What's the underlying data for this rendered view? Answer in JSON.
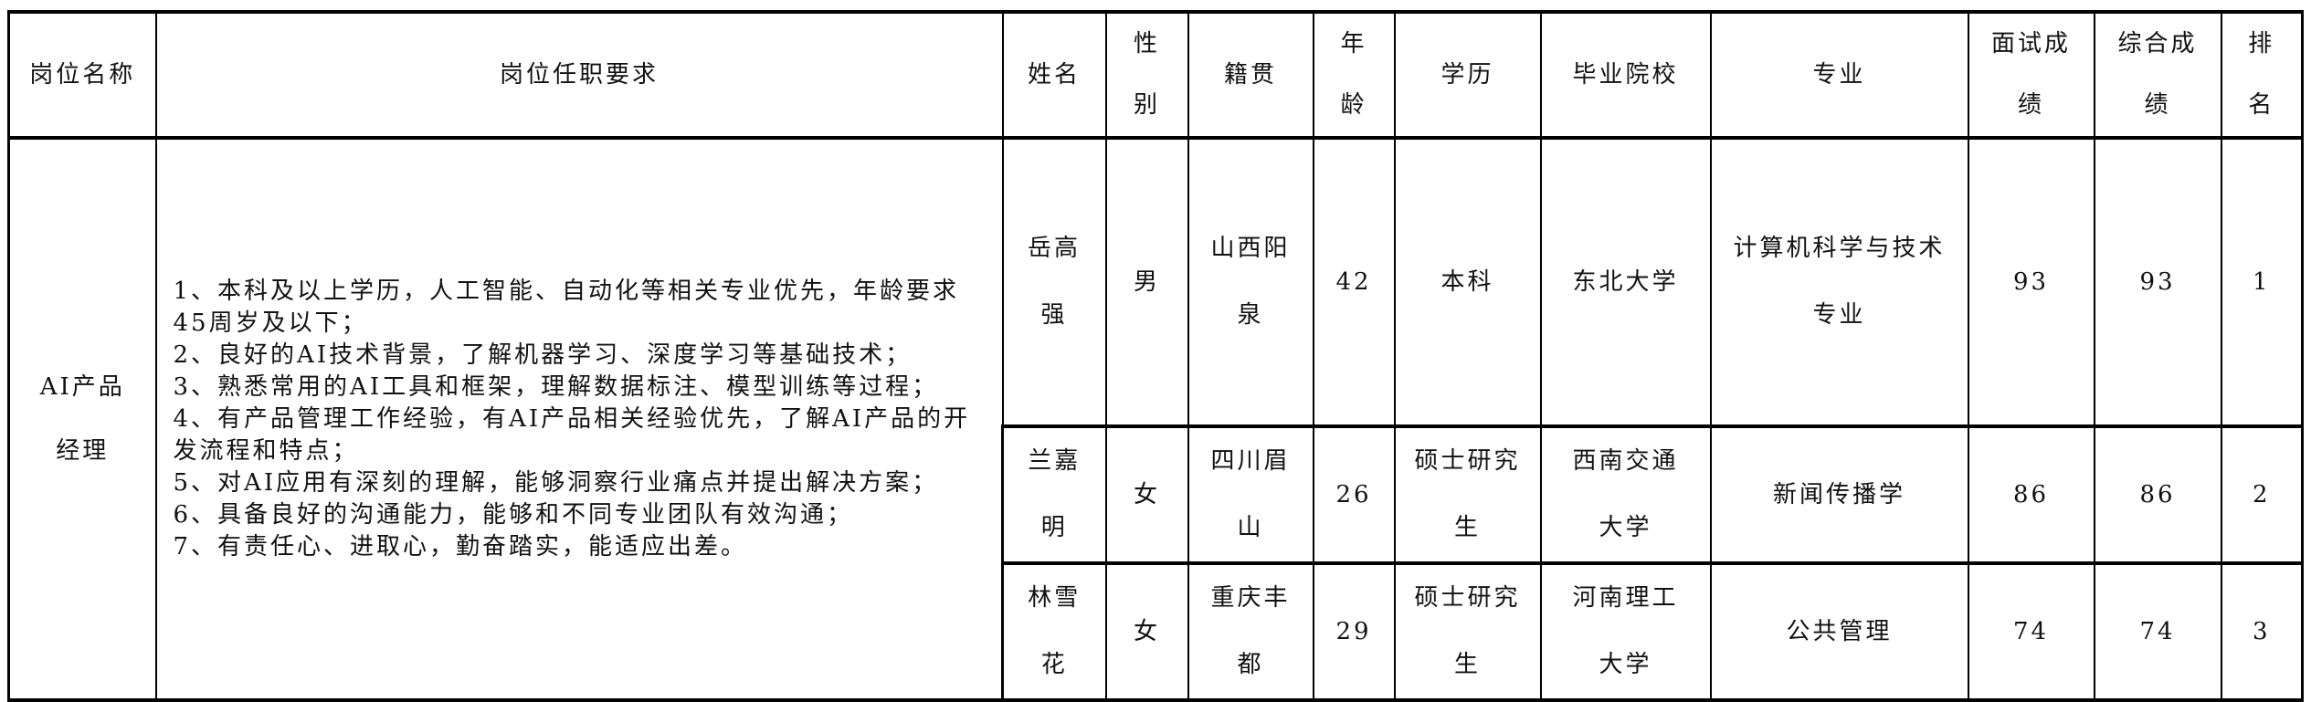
{
  "headers": [
    "岗位名称",
    "岗位任职要求",
    "姓名",
    "性别",
    "籍贯",
    "年龄",
    "学历",
    "毕业院校",
    "专业",
    "面试成绩",
    "综合成绩",
    "排名"
  ],
  "position": "AI产品经理",
  "requirements": [
    "1、本科及以上学历，人工智能、自动化等相关专业优先，年龄要求45周岁及以下；",
    "2、良好的AI技术背景，了解机器学习、深度学习等基础技术；",
    "3、熟悉常用的AI工具和框架，理解数据标注、模型训练等过程；",
    "4、有产品管理工作经验，有AI产品相关经验优先，了解AI产品的开发流程和特点；",
    "5、对AI应用有深刻的理解，能够洞察行业痛点并提出解决方案；",
    "6、具备良好的沟通能力，能够和不同专业团队有效沟通；",
    "7、有责任心、进取心，勤奋踏实，能适应出差。"
  ],
  "candidates": [
    {
      "name": "岳高强",
      "gender": "男",
      "origin": "山西阳泉",
      "age": "42",
      "education": "本科",
      "school": "东北大学",
      "major": "计算机科学与技术专业",
      "interview": "93",
      "total": "93",
      "rank": "1"
    },
    {
      "name": "兰嘉明",
      "gender": "女",
      "origin": "四川眉山",
      "age": "26",
      "education": "硕士研究生",
      "school": "西南交通大学",
      "major": "新闻传播学",
      "interview": "86",
      "total": "86",
      "rank": "2"
    },
    {
      "name": "林雪花",
      "gender": "女",
      "origin": "重庆丰都",
      "age": "29",
      "education": "硕士研究生",
      "school": "河南理工大学",
      "major": "公共管理",
      "interview": "74",
      "total": "74",
      "rank": "3"
    }
  ]
}
